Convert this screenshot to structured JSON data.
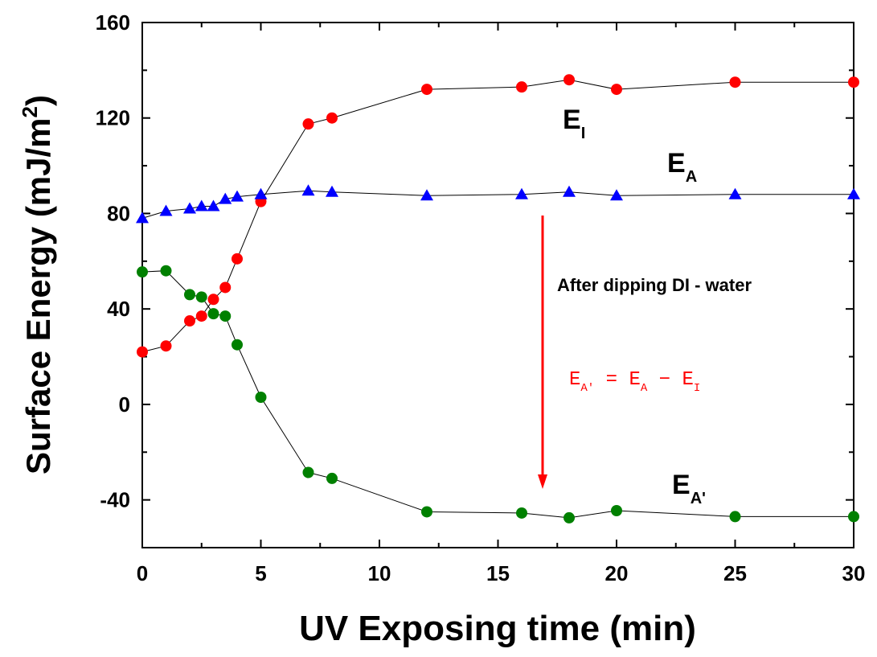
{
  "chart_data": {
    "type": "line",
    "x_label": "UV Exposing time (min)",
    "y_label": "Surface Energy (mJ/m",
    "y_label_sup": "2",
    "y_label_end": ")",
    "xlim": [
      0,
      30
    ],
    "ylim": [
      -60,
      160
    ],
    "xticks": [
      0,
      5,
      10,
      15,
      20,
      25,
      30
    ],
    "yticks": [
      -40,
      0,
      40,
      80,
      120,
      160
    ],
    "xminorticks": [
      2.5,
      7.5,
      12.5,
      17.5,
      22.5,
      27.5
    ],
    "yminorticks": [
      -20,
      20,
      60,
      100,
      140
    ],
    "x": [
      0,
      1,
      2,
      2.5,
      3,
      3.5,
      4,
      5,
      7,
      8,
      12,
      16,
      18,
      20,
      25,
      30
    ],
    "series": [
      {
        "label": "E",
        "label_sub": "I",
        "color": "#ff0000",
        "marker": "circle",
        "values": [
          22,
          24.5,
          35,
          37,
          44,
          49,
          61,
          85,
          117.5,
          120,
          132,
          133,
          136,
          132,
          135,
          135
        ]
      },
      {
        "label": "E",
        "label_sub": "A",
        "color": "#0000ff",
        "marker": "triangle",
        "values": [
          78,
          81,
          82,
          83,
          83,
          86,
          87,
          88,
          89.5,
          89,
          87.5,
          88,
          89,
          87.5,
          88,
          88
        ]
      },
      {
        "label": "E",
        "label_sub": "A'",
        "color": "#008000",
        "marker": "circle",
        "values": [
          55.5,
          56,
          46,
          45,
          38,
          37,
          25,
          3,
          -28.5,
          -31,
          -45,
          -45.5,
          -47.5,
          -44.5,
          -47,
          -47
        ]
      }
    ],
    "annotation": "After dipping DI - water",
    "formula": [
      {
        "text": "E",
        "sub": "A'"
      },
      {
        "text": " = "
      },
      {
        "text": "E",
        "sub": "A"
      },
      {
        "text": " − "
      },
      {
        "text": "E",
        "sub": "I"
      }
    ],
    "formula_color": "#ff0000",
    "arrow_color": "#ff0000"
  }
}
